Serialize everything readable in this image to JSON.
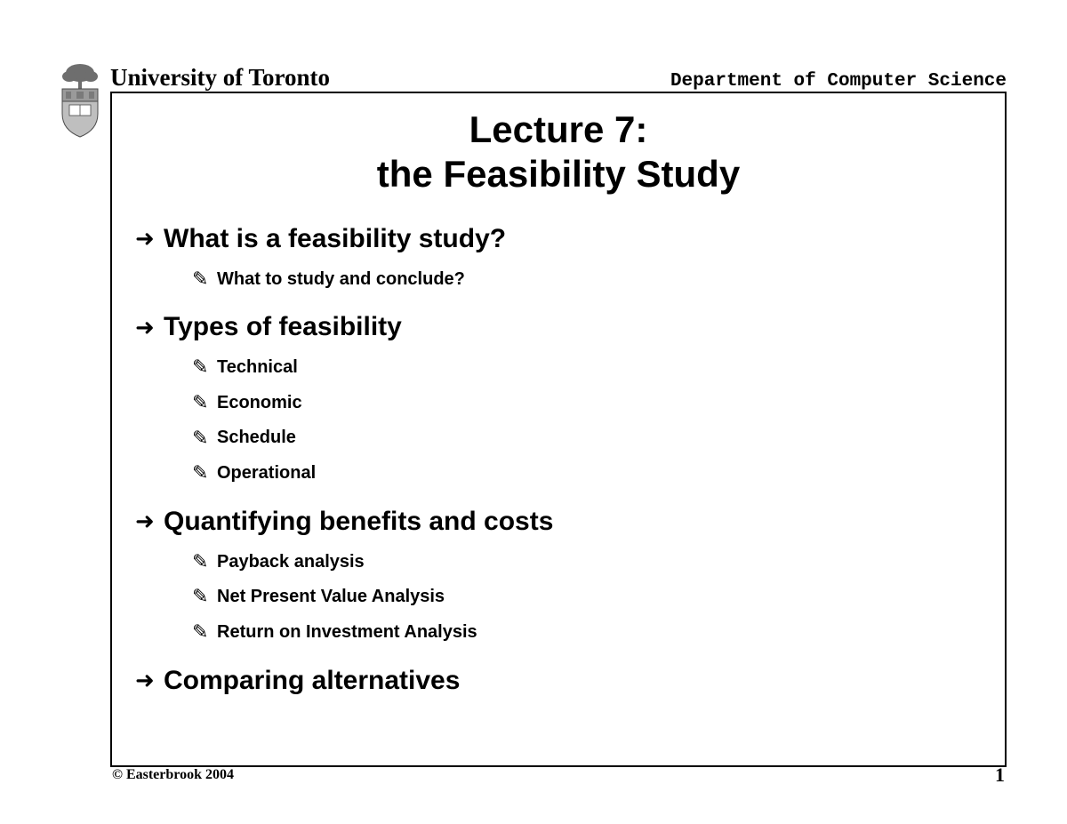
{
  "header": {
    "university": "University of Toronto",
    "department": "Department of Computer Science"
  },
  "title_line1": "Lecture 7:",
  "title_line2": "the Feasibility Study",
  "sections": [
    {
      "heading": "What is a feasibility study?",
      "items": [
        "What to study and conclude?"
      ]
    },
    {
      "heading": "Types of feasibility",
      "items": [
        "Technical",
        "Economic",
        "Schedule",
        "Operational"
      ]
    },
    {
      "heading": "Quantifying benefits and costs",
      "items": [
        "Payback analysis",
        "Net Present Value Analysis",
        "Return on Investment Analysis"
      ]
    },
    {
      "heading": "Comparing alternatives",
      "items": []
    }
  ],
  "footer": {
    "copyright": "© Easterbrook 2004",
    "page": "1"
  },
  "style": {
    "background_color": "#ffffff",
    "text_color": "#000000",
    "border_color": "#000000",
    "title_fontsize": 42,
    "heading_fontsize": 30,
    "subitem_fontsize": 20,
    "header_university_fontsize": 27,
    "header_department_fontsize": 21,
    "main_bullet_glyph": "➜",
    "sub_bullet_glyph": "✎",
    "crest_colors": {
      "tree": "#6e6e6e",
      "shield_top": "#9a9a9a",
      "shield_body": "#bfbfbf",
      "book": "#ffffff",
      "outline": "#4a4a4a"
    }
  }
}
